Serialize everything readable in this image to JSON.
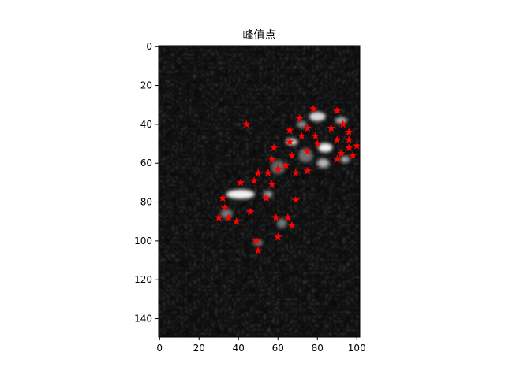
{
  "chart_data": {
    "type": "scatter",
    "title": "峰值点",
    "background": "grayscale-image",
    "xlim": [
      0,
      100
    ],
    "ylim": [
      150,
      0
    ],
    "y_inverted": true,
    "xticks": [
      "0",
      "20",
      "40",
      "60",
      "80",
      "100"
    ],
    "xtick_values": [
      0,
      20,
      40,
      60,
      80,
      100
    ],
    "yticks": [
      "0",
      "20",
      "40",
      "60",
      "80",
      "100",
      "120",
      "140"
    ],
    "ytick_values": [
      0,
      20,
      40,
      60,
      80,
      100,
      120,
      140
    ],
    "marker": "star",
    "marker_color": "#ff0000",
    "grid": false,
    "bright_regions": [
      {
        "x": 41,
        "y": 76,
        "w": 12,
        "h": 4,
        "level": 1.0
      },
      {
        "x": 84,
        "y": 52,
        "w": 6,
        "h": 4,
        "level": 1.0
      },
      {
        "x": 80,
        "y": 36,
        "w": 7,
        "h": 4,
        "level": 0.9
      },
      {
        "x": 67,
        "y": 49,
        "w": 5,
        "h": 3,
        "level": 0.85
      },
      {
        "x": 92,
        "y": 38,
        "w": 5,
        "h": 3,
        "level": 0.7
      },
      {
        "x": 83,
        "y": 60,
        "w": 5,
        "h": 4,
        "level": 0.75
      },
      {
        "x": 94,
        "y": 58,
        "w": 4,
        "h": 3,
        "level": 0.65
      },
      {
        "x": 55,
        "y": 76,
        "w": 4,
        "h": 3,
        "level": 0.6
      },
      {
        "x": 72,
        "y": 40,
        "w": 4,
        "h": 3,
        "level": 0.55
      },
      {
        "x": 34,
        "y": 86,
        "w": 5,
        "h": 4,
        "level": 0.45
      },
      {
        "x": 62,
        "y": 91,
        "w": 4,
        "h": 4,
        "level": 0.45
      },
      {
        "x": 50,
        "y": 101,
        "w": 4,
        "h": 3,
        "level": 0.4
      },
      {
        "x": 74,
        "y": 56,
        "w": 6,
        "h": 6,
        "level": 0.4
      },
      {
        "x": 60,
        "y": 62,
        "w": 6,
        "h": 6,
        "level": 0.35
      }
    ],
    "points": [
      {
        "x": 44,
        "y": 40
      },
      {
        "x": 78,
        "y": 32
      },
      {
        "x": 90,
        "y": 33
      },
      {
        "x": 71,
        "y": 37
      },
      {
        "x": 75,
        "y": 42
      },
      {
        "x": 87,
        "y": 42
      },
      {
        "x": 93,
        "y": 40
      },
      {
        "x": 66,
        "y": 43
      },
      {
        "x": 96,
        "y": 44
      },
      {
        "x": 72,
        "y": 46
      },
      {
        "x": 79,
        "y": 46
      },
      {
        "x": 90,
        "y": 48
      },
      {
        "x": 96,
        "y": 48
      },
      {
        "x": 66,
        "y": 49
      },
      {
        "x": 80,
        "y": 50
      },
      {
        "x": 100,
        "y": 51
      },
      {
        "x": 58,
        "y": 52
      },
      {
        "x": 96,
        "y": 52
      },
      {
        "x": 92,
        "y": 55
      },
      {
        "x": 75,
        "y": 54
      },
      {
        "x": 67,
        "y": 56
      },
      {
        "x": 98,
        "y": 56
      },
      {
        "x": 57,
        "y": 58
      },
      {
        "x": 90,
        "y": 58
      },
      {
        "x": 64,
        "y": 61
      },
      {
        "x": 60,
        "y": 63
      },
      {
        "x": 50,
        "y": 65
      },
      {
        "x": 55,
        "y": 65
      },
      {
        "x": 69,
        "y": 65
      },
      {
        "x": 75,
        "y": 64
      },
      {
        "x": 48,
        "y": 69
      },
      {
        "x": 41,
        "y": 70
      },
      {
        "x": 57,
        "y": 71
      },
      {
        "x": 32,
        "y": 78
      },
      {
        "x": 54,
        "y": 78
      },
      {
        "x": 69,
        "y": 79
      },
      {
        "x": 33,
        "y": 83
      },
      {
        "x": 46,
        "y": 85
      },
      {
        "x": 30,
        "y": 88
      },
      {
        "x": 35,
        "y": 88
      },
      {
        "x": 59,
        "y": 88
      },
      {
        "x": 65,
        "y": 88
      },
      {
        "x": 39,
        "y": 90
      },
      {
        "x": 67,
        "y": 92
      },
      {
        "x": 60,
        "y": 98
      },
      {
        "x": 49,
        "y": 100
      },
      {
        "x": 50,
        "y": 105
      }
    ]
  }
}
